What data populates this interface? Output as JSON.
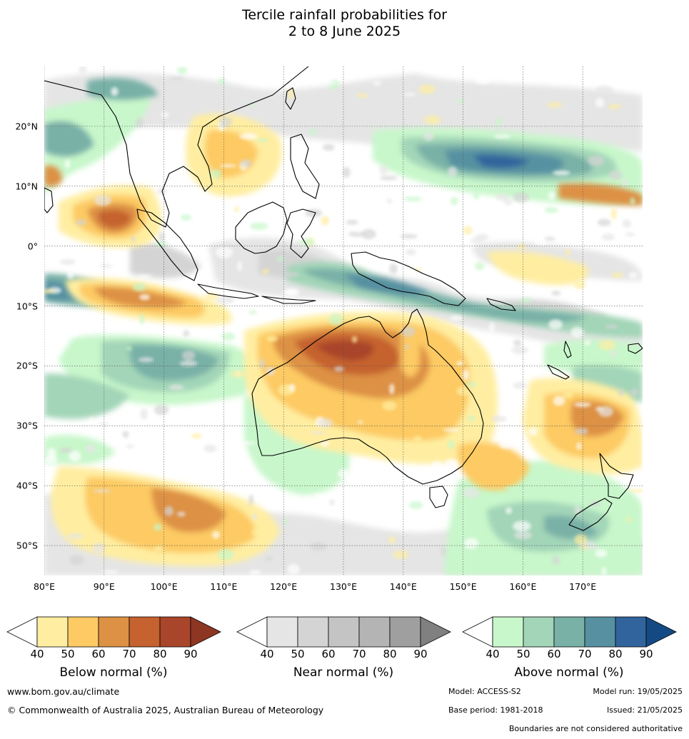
{
  "title": {
    "line1": "Tercile rainfall probabilities for",
    "line2": "2 to 8 June 2025"
  },
  "map": {
    "region": "Indian Ocean, Maritime Continent, Australia and south-west Pacific",
    "lon_range": [
      80,
      180
    ],
    "lat_range": [
      -55,
      30
    ],
    "lat_labels": [
      "20°N",
      "10°N",
      "0°",
      "10°S",
      "20°S",
      "30°S",
      "40°S",
      "50°S"
    ],
    "lat_values": [
      20,
      10,
      0,
      -10,
      -20,
      -30,
      -40,
      -50
    ],
    "lon_labels": [
      "80°E",
      "90°E",
      "100°E",
      "110°E",
      "120°E",
      "130°E",
      "140°E",
      "150°E",
      "160°E",
      "170°E"
    ],
    "lon_values": [
      80,
      90,
      100,
      110,
      120,
      130,
      140,
      150,
      160,
      170
    ],
    "gridlines": "dotted",
    "colors": {
      "below": [
        "#ffeea1",
        "#fdca64",
        "#dd9144",
        "#c5622f",
        "#a8452a",
        "#8d3623"
      ],
      "near": [
        "#e5e5e5",
        "#d4d4d4",
        "#c4c4c4",
        "#b4b4b4",
        "#9f9f9f",
        "#808080"
      ],
      "above": [
        "#c8f7cb",
        "#a3d5b8",
        "#79b1a7",
        "#5791a1",
        "#31649c",
        "#144a83"
      ]
    }
  },
  "legends": [
    {
      "title": "Below normal (%)",
      "ticks": [
        "40",
        "50",
        "60",
        "70",
        "80",
        "90"
      ],
      "color_key": "below"
    },
    {
      "title": "Near normal (%)",
      "ticks": [
        "40",
        "50",
        "60",
        "70",
        "80",
        "90"
      ],
      "color_key": "near"
    },
    {
      "title": "Above normal (%)",
      "ticks": [
        "40",
        "50",
        "60",
        "70",
        "80",
        "90"
      ],
      "color_key": "above"
    }
  ],
  "footer": {
    "website": "www.bom.gov.au/climate",
    "copyright": "© Commonwealth of Australia 2025, Australian Bureau of Meteorology",
    "model": "Model: ACCESS-S2",
    "model_run": "Model run: 19/05/2025",
    "base_period": "Base period: 1981-2018",
    "issued": "Issued: 21/05/2025",
    "disclaimer": "Boundaries are not considered authoritative"
  }
}
